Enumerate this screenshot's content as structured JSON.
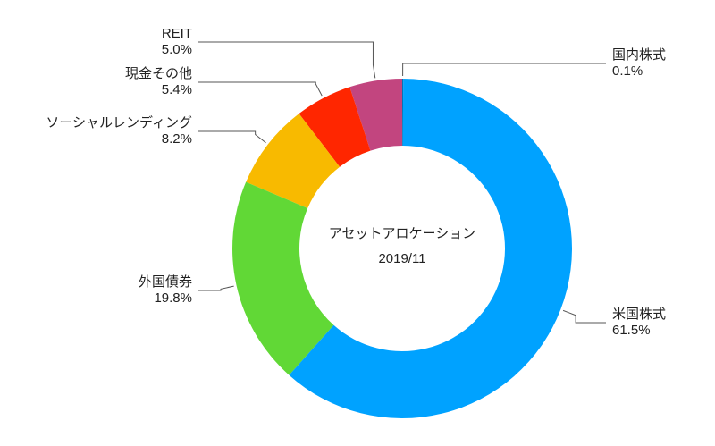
{
  "chart_data": {
    "type": "donut",
    "title": "アセットアロケーション",
    "subtitle": "2019/11",
    "categories": [
      "国内株式",
      "米国株式",
      "外国債券",
      "ソーシャルレンディング",
      "現金その他",
      "REIT"
    ],
    "values": [
      0.1,
      61.5,
      19.8,
      8.2,
      5.4,
      5.0
    ],
    "value_labels": [
      "0.1%",
      "61.5%",
      "19.8%",
      "8.2%",
      "5.4%",
      "5.0%"
    ],
    "colors": [
      "#0076ba",
      "#00a2ff",
      "#61d836",
      "#f8ba00",
      "#ff2600",
      "#c2457f"
    ]
  }
}
